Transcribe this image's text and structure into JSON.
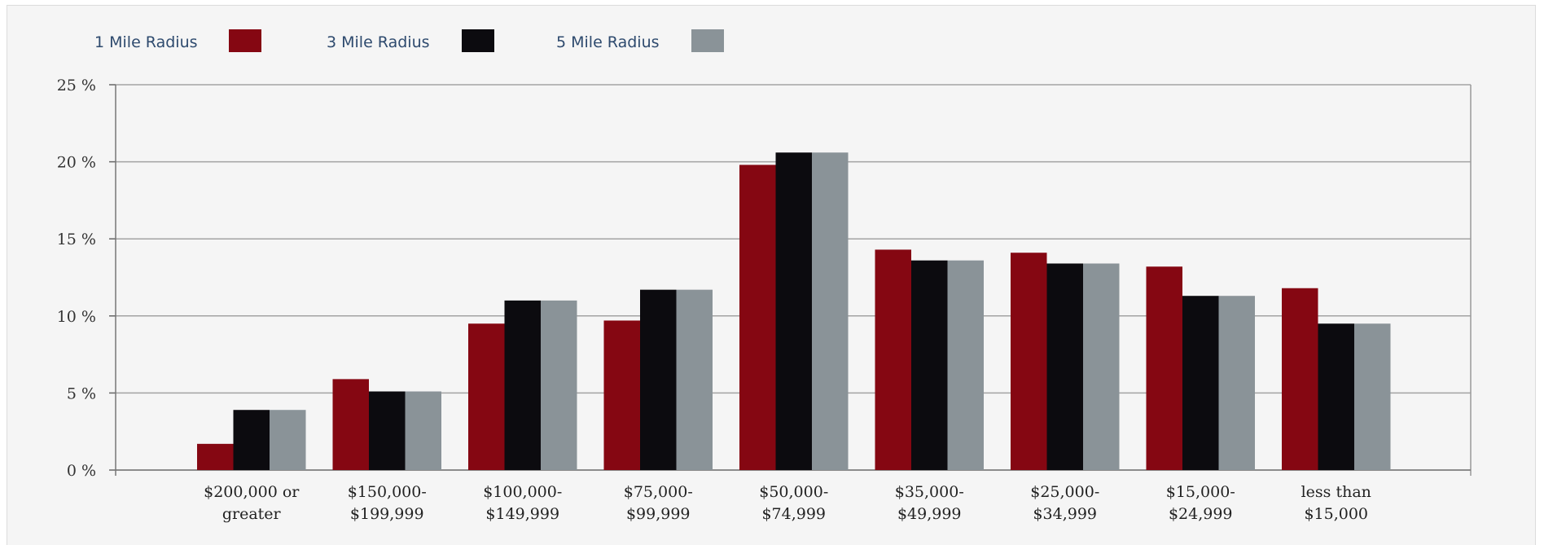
{
  "chart_data": {
    "type": "bar",
    "categories": [
      [
        "$200,000 or",
        "greater"
      ],
      [
        "$150,000-",
        "$199,999"
      ],
      [
        "$100,000-",
        "$149,999"
      ],
      [
        "$75,000-",
        "$99,999"
      ],
      [
        "$50,000-",
        "$74,999"
      ],
      [
        "$35,000-",
        "$49,999"
      ],
      [
        "$25,000-",
        "$34,999"
      ],
      [
        "$15,000-",
        "$24,999"
      ],
      [
        "less than",
        "$15,000"
      ]
    ],
    "series": [
      {
        "name": "1 Mile Radius",
        "color": "#850712",
        "values": [
          1.7,
          5.9,
          9.5,
          9.7,
          19.8,
          14.3,
          14.1,
          13.2,
          11.8
        ]
      },
      {
        "name": "3 Mile Radius",
        "color": "#0c0b0f",
        "values": [
          3.9,
          5.1,
          11.0,
          11.7,
          20.6,
          13.6,
          13.4,
          11.3,
          9.5
        ]
      },
      {
        "name": "5 Mile Radius",
        "color": "#8a9398",
        "values": [
          3.9,
          5.1,
          11.0,
          11.7,
          20.6,
          13.6,
          13.4,
          11.3,
          9.5
        ]
      }
    ],
    "yticks": [
      "0 %",
      "5 %",
      "10 %",
      "15 %",
      "20 %",
      "25 %"
    ],
    "ylim": [
      0,
      25
    ],
    "grid": true,
    "legend_position": "top-left",
    "title": "",
    "xlabel": "",
    "ylabel": ""
  },
  "legend": {
    "items": [
      {
        "label": "1 Mile Radius",
        "color": "#850712"
      },
      {
        "label": "3 Mile Radius",
        "color": "#0c0b0f"
      },
      {
        "label": "5 Mile Radius",
        "color": "#8a9398"
      }
    ]
  }
}
